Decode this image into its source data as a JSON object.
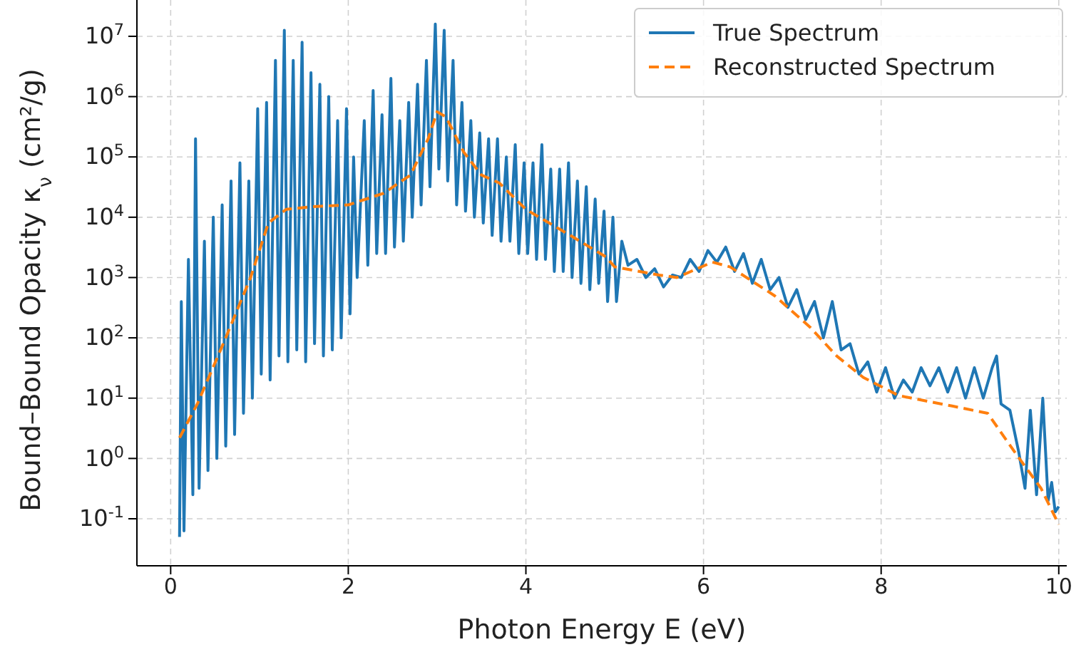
{
  "chart_data": {
    "type": "line",
    "xlabel": "Photon Energy E (eV)",
    "ylabel": "Bound–Bound Opacity κ$_{ν}$ (cm²/g)",
    "log": "y",
    "grid": true,
    "legend": "top right",
    "xlim": [
      -0.38,
      10.09
    ],
    "xticks": [
      0,
      2,
      4,
      6,
      8,
      10
    ],
    "ylim": [
      0.0166,
      40000000
    ],
    "yticks": [
      {
        "value": 0.1,
        "label": "10$^{-1}$"
      },
      {
        "value": 1,
        "label": "10$^{0}$"
      },
      {
        "value": 10,
        "label": "10$^{1}$"
      },
      {
        "value": 100,
        "label": "10$^{2}$"
      },
      {
        "value": 1000,
        "label": "10$^{3}$"
      },
      {
        "value": 10000,
        "label": "10$^{4}$"
      },
      {
        "value": 100000,
        "label": "10$^{5}$"
      },
      {
        "value": 1000000,
        "label": "10$^{6}$"
      },
      {
        "value": 10000000,
        "label": "10$^{7}$"
      }
    ],
    "series": [
      {
        "name": "True Spectrum",
        "color": "#1f77b4",
        "line_style": "solid",
        "x": [
          0.1,
          0.12,
          0.15,
          0.2,
          0.25,
          0.28,
          0.32,
          0.38,
          0.42,
          0.48,
          0.52,
          0.58,
          0.62,
          0.68,
          0.72,
          0.78,
          0.82,
          0.88,
          0.92,
          0.98,
          1.02,
          1.08,
          1.12,
          1.18,
          1.22,
          1.28,
          1.32,
          1.38,
          1.42,
          1.48,
          1.52,
          1.58,
          1.62,
          1.68,
          1.72,
          1.78,
          1.82,
          1.88,
          1.92,
          1.98,
          2.02,
          2.06,
          2.1,
          2.18,
          2.22,
          2.28,
          2.32,
          2.38,
          2.42,
          2.48,
          2.52,
          2.58,
          2.62,
          2.68,
          2.72,
          2.78,
          2.82,
          2.88,
          2.92,
          2.98,
          3.02,
          3.08,
          3.12,
          3.18,
          3.22,
          3.28,
          3.32,
          3.38,
          3.42,
          3.48,
          3.52,
          3.58,
          3.62,
          3.68,
          3.72,
          3.78,
          3.82,
          3.88,
          3.92,
          3.98,
          4.02,
          4.08,
          4.12,
          4.18,
          4.22,
          4.28,
          4.32,
          4.38,
          4.42,
          4.48,
          4.52,
          4.58,
          4.62,
          4.68,
          4.72,
          4.78,
          4.82,
          4.88,
          4.92,
          4.98,
          5.02,
          5.08,
          5.15,
          5.25,
          5.35,
          5.45,
          5.55,
          5.65,
          5.75,
          5.85,
          5.95,
          6.05,
          6.15,
          6.25,
          6.35,
          6.45,
          6.55,
          6.65,
          6.75,
          6.85,
          6.95,
          7.05,
          7.15,
          7.25,
          7.35,
          7.45,
          7.55,
          7.65,
          7.75,
          7.85,
          7.95,
          8.05,
          8.15,
          8.25,
          8.35,
          8.45,
          8.55,
          8.65,
          8.75,
          8.85,
          8.95,
          9.05,
          9.15,
          9.25,
          9.3,
          9.35,
          9.45,
          9.55,
          9.62,
          9.68,
          9.75,
          9.82,
          9.88,
          9.92,
          9.96,
          10.0
        ],
        "values": [
          0.05,
          400,
          0.063,
          2000,
          0.25,
          200000,
          0.32,
          4000,
          0.63,
          10000,
          1,
          16000,
          1.6,
          40000,
          2.5,
          80000,
          5.6,
          40000,
          10,
          630000,
          25,
          800000,
          20,
          4000000,
          50,
          12600000,
          40,
          4000000,
          63,
          8000000,
          40,
          2500000,
          80,
          1600000,
          50,
          1000000,
          63,
          400000,
          100,
          630000,
          250,
          100000,
          1000,
          400000,
          1600,
          1260000,
          2500,
          500000,
          2500,
          2000000,
          3200,
          400000,
          4000,
          800000,
          10000,
          1600000,
          16000,
          4000000,
          32000,
          16000000,
          63000,
          12600000,
          40000,
          4000000,
          16000,
          800000,
          12600,
          400000,
          10000,
          250000,
          8000,
          200000,
          5000,
          200000,
          4000,
          100000,
          4000,
          160000,
          2500,
          80000,
          2500,
          80000,
          2000,
          160000,
          2000,
          63000,
          1260,
          63000,
          1260,
          80000,
          1000,
          40000,
          800,
          32000,
          630,
          20000,
          800,
          12600,
          400,
          10000,
          400,
          4000,
          1600,
          2000,
          1000,
          1400,
          700,
          1100,
          1000,
          2000,
          1260,
          2800,
          1800,
          3200,
          1260,
          2500,
          800,
          2000,
          630,
          1000,
          320,
          630,
          200,
          400,
          100,
          400,
          63,
          80,
          25,
          40,
          12.6,
          32,
          10,
          20,
          12.6,
          32,
          16,
          32,
          12.6,
          32,
          10,
          32,
          10,
          32,
          50,
          8,
          6.3,
          1.26,
          0.32,
          6.3,
          0.25,
          10,
          0.2,
          0.4,
          0.13,
          0.16
        ]
      },
      {
        "name": "Reconstructed Spectrum",
        "color": "#ff7f0e",
        "line_style": "dashed",
        "x": [
          0.1,
          0.3,
          0.6,
          0.9,
          1.1,
          1.3,
          1.6,
          2.0,
          2.4,
          2.7,
          2.9,
          3.0,
          3.1,
          3.3,
          3.5,
          3.7,
          4.0,
          4.5,
          4.9,
          5.0,
          5.5,
          5.7,
          6.1,
          6.3,
          6.8,
          7.2,
          7.5,
          7.8,
          8.2,
          8.8,
          9.2,
          9.5,
          9.8,
          10.0
        ],
        "values": [
          2.2,
          8,
          85,
          1000,
          8000,
          13500,
          15000,
          16000,
          25000,
          50000,
          200000,
          560000,
          460000,
          120000,
          50000,
          37000,
          13500,
          5000,
          2200,
          1500,
          1100,
          1000,
          1800,
          1500,
          500,
          150,
          50,
          22,
          11,
          7.4,
          5.6,
          1.3,
          0.32,
          0.08
        ]
      }
    ]
  }
}
